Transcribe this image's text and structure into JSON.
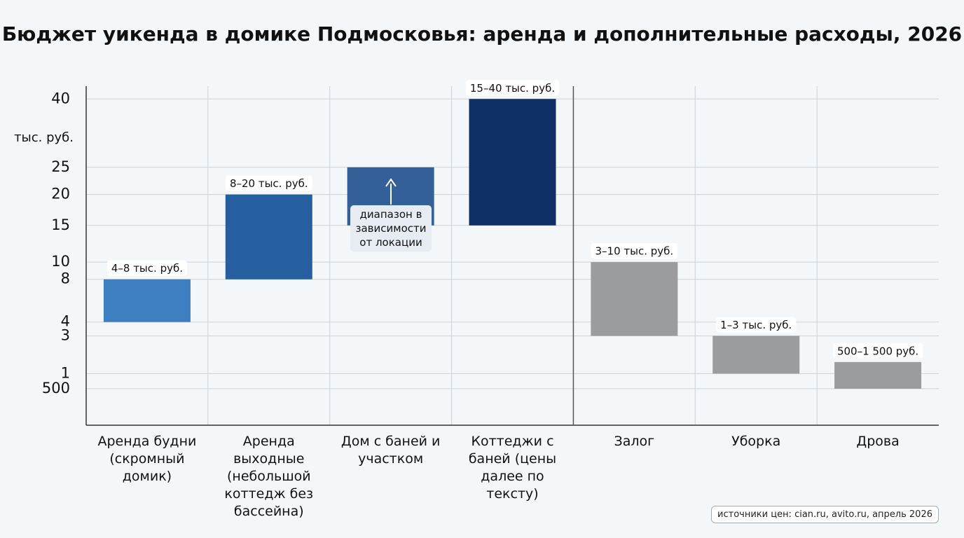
{
  "chart_data": {
    "type": "range-bar",
    "title": "Бюджет уикенда в домике Подмосковья: аренда и дополнительные расходы, 2026",
    "y_axis_label": "тыс. руб.",
    "categories": [
      "Аренда будни (скромный домик)",
      "Аренда выходные (небольшой коттедж без бассейна)",
      "Дом с баней и участком",
      "Коттеджи с баней (цены далее по тексту)",
      "Залог",
      "Уборка",
      "Дрова"
    ],
    "values": [
      [
        4,
        8
      ],
      [
        8,
        20
      ],
      [
        15,
        25
      ],
      [
        15,
        40
      ],
      [
        3,
        10
      ],
      [
        1,
        3
      ],
      [
        0.5,
        1.5
      ]
    ],
    "value_labels": [
      "4–8 тыс. руб.",
      "8–20 тыс. руб.",
      null,
      "15–40 тыс. руб.",
      "3–10 тыс. руб.",
      "1–3 тыс. руб.",
      "500–1 500 руб."
    ],
    "colors": [
      "#3d7fc1",
      "#255fa0",
      "#34609a",
      "#0f2f66",
      "#9a9c9f",
      "#9a9c9f",
      "#9a9c9f"
    ],
    "annotation": "диапазон в зависимости от локации",
    "source": "источники цен: cian.ru, avito.ru, апрель 2026",
    "ylim": [
      0,
      45
    ],
    "y_scale": "sqrt",
    "yticks": [
      40,
      25,
      20,
      15,
      10,
      8,
      4,
      3,
      1,
      {
        "value": 0.5,
        "label": "500"
      }
    ],
    "grid": true
  }
}
